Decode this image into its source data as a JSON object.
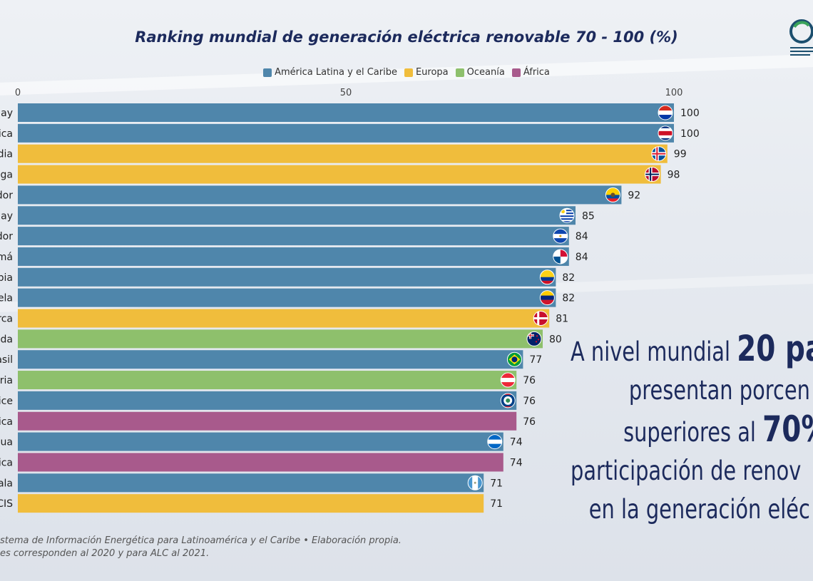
{
  "header": {
    "title": "Ranking mundial de generación eléctrica renovable 70 - 100 (%)"
  },
  "legend": [
    {
      "label": "América Latina y el Caribe",
      "color": "#4f86ab"
    },
    {
      "label": "Europa",
      "color": "#f0bd3c"
    },
    {
      "label": "Oceanía",
      "color": "#8ec06c"
    },
    {
      "label": "África",
      "color": "#a85a8c"
    }
  ],
  "chart_data": {
    "type": "bar",
    "orientation": "horizontal",
    "title": "Ranking mundial de generación eléctrica renovable 70 - 100 (%)",
    "xlim": [
      0,
      100
    ],
    "xticks": [
      0,
      50,
      100
    ],
    "categories": [
      "ay",
      "ica",
      "dia",
      "ega",
      "dor",
      "nay",
      "dor",
      "má",
      "bia",
      "ela",
      "rca",
      "nda",
      "asil",
      "ria",
      "ice",
      "ica",
      "gua",
      "ica",
      "ala",
      "CIS"
    ],
    "values": [
      100,
      100,
      99,
      98,
      92,
      85,
      84,
      84,
      82,
      82,
      81,
      80,
      77,
      76,
      76,
      76,
      74,
      74,
      71,
      71
    ],
    "groups": [
      "América Latina y el Caribe",
      "América Latina y el Caribe",
      "Europa",
      "Europa",
      "América Latina y el Caribe",
      "América Latina y el Caribe",
      "América Latina y el Caribe",
      "América Latina y el Caribe",
      "América Latina y el Caribe",
      "América Latina y el Caribe",
      "Europa",
      "Oceanía",
      "América Latina y el Caribe",
      "Oceanía",
      "América Latina y el Caribe",
      "África",
      "América Latina y el Caribe",
      "África",
      "América Latina y el Caribe",
      "Europa"
    ],
    "flags": [
      "paraguay",
      "costa-rica",
      "iceland",
      "norway",
      "ecuador",
      "uruguay",
      "el-salvador",
      "panama",
      "colombia",
      "venezuela",
      "denmark",
      "new-zealand",
      "brazil",
      "austria",
      "belize",
      "none",
      "nicaragua",
      "none",
      "guatemala",
      "none"
    ],
    "legend_position": "top-center"
  },
  "callout": {
    "line1_pre": "A nivel mundial ",
    "line1_big": "20 pa",
    "line2": "presentan porcen",
    "line3_pre": "superiores al ",
    "line3_big": "70%",
    "line4": "participación de renov",
    "line5": "en la generación eléc"
  },
  "source": {
    "line1": "stema de Información Energética para Latinoamérica y el Caribe • Elaboración propia.",
    "line2": "es corresponden al 2020 y para ALC al 2021."
  }
}
